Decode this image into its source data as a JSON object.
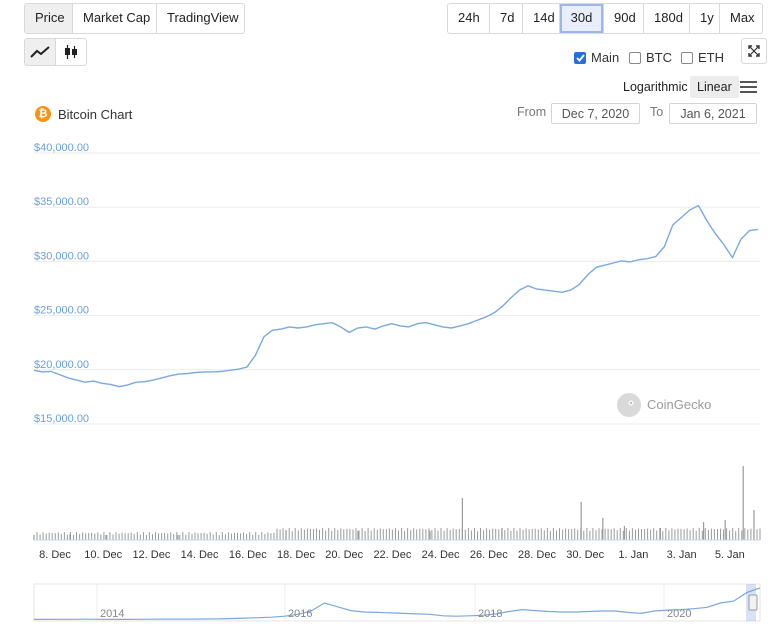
{
  "tabs": [
    {
      "label": "Price",
      "active": true
    },
    {
      "label": "Market Cap",
      "active": false
    },
    {
      "label": "TradingView",
      "active": false
    }
  ],
  "ranges": [
    {
      "label": "24h",
      "selected": false
    },
    {
      "label": "7d",
      "selected": false
    },
    {
      "label": "14d",
      "selected": false
    },
    {
      "label": "30d",
      "selected": true
    },
    {
      "label": "90d",
      "selected": false
    },
    {
      "label": "180d",
      "selected": false
    },
    {
      "label": "1y",
      "selected": false
    },
    {
      "label": "Max",
      "selected": false
    }
  ],
  "chart_type_buttons": [
    {
      "icon": "line-chart-icon",
      "active": true
    },
    {
      "icon": "candlestick-icon",
      "active": false
    }
  ],
  "compare": [
    {
      "label": "Main",
      "checked": true
    },
    {
      "label": "BTC",
      "checked": false
    },
    {
      "label": "ETH",
      "checked": false
    }
  ],
  "scale": {
    "logarithmic": "Logarithmic",
    "linear": "Linear",
    "selected": "Linear"
  },
  "icons": {
    "expand": "expand-icon",
    "menu": "hamburger-menu-icon",
    "coin": "bitcoin-icon",
    "watermark_logo": "coingecko-logo-icon"
  },
  "chart_title": "Bitcoin Chart",
  "date_range": {
    "from_label": "From",
    "from": "Dec 7, 2020",
    "to_label": "To",
    "to": "Jan 6, 2021"
  },
  "watermark": "CoinGecko",
  "colors": {
    "line": "#7aa9e0",
    "tick_label": "#6aa0dc",
    "bitcoin": "#f7931a",
    "volume": "#9a9a9a",
    "selected_range": "#9db5ea"
  },
  "chart_data": {
    "type": "line",
    "title": "Bitcoin Chart",
    "series": [
      {
        "values": [
          19400,
          19250,
          19300,
          19000,
          18700,
          18500,
          18300,
          18400,
          18200,
          18100,
          17900,
          18050,
          18300,
          18350,
          18500,
          18700,
          18900,
          19050,
          19100,
          19200,
          19250,
          19250,
          19300,
          19400,
          19500,
          19700,
          20800,
          22500,
          23100,
          23200,
          23400,
          23300,
          23400,
          23600,
          23700,
          23800,
          23400,
          22900,
          23300,
          23400,
          23200,
          23500,
          23700,
          23500,
          23400,
          23700,
          23800,
          23600,
          23400,
          23300,
          23500,
          23700,
          24000,
          24300,
          24700,
          25300,
          26100,
          26800,
          27200,
          26900,
          26800,
          26700,
          26600,
          26800,
          27300,
          28200,
          28900,
          29100,
          29300,
          29500,
          29400,
          29600,
          29700,
          29900,
          30800,
          32800,
          33500,
          34200,
          34600,
          33200,
          32000,
          31000,
          29800,
          31500,
          32300,
          32400
        ]
      }
    ],
    "x_start": "2020-12-07",
    "x_end": "2021-01-06",
    "ylim": [
      15000,
      40000
    ],
    "yticks": [
      "$15,000.00",
      "$20,000.00",
      "$25,000.00",
      "$30,000.00",
      "$35,000.00",
      "$40,000.00"
    ],
    "ytick_values": [
      15000,
      20000,
      25000,
      30000,
      35000,
      40000
    ],
    "xticks": [
      "8. Dec",
      "10. Dec",
      "12. Dec",
      "14. Dec",
      "16. Dec",
      "18. Dec",
      "20. Dec",
      "22. Dec",
      "24. Dec",
      "26. Dec",
      "28. Dec",
      "30. Dec",
      "1. Jan",
      "3. Jan",
      "5. Jan"
    ],
    "grid": true,
    "legend": "none",
    "volume": {
      "base": 8,
      "spikes": [
        {
          "pos": 0.0,
          "h": 5
        },
        {
          "pos": 0.05,
          "h": 6
        },
        {
          "pos": 0.1,
          "h": 5
        },
        {
          "pos": 0.2,
          "h": 5
        },
        {
          "pos": 0.35,
          "h": 10
        },
        {
          "pos": 0.45,
          "h": 9
        },
        {
          "pos": 0.55,
          "h": 9
        },
        {
          "pos": 0.595,
          "h": 42
        },
        {
          "pos": 0.65,
          "h": 12
        },
        {
          "pos": 0.76,
          "h": 38
        },
        {
          "pos": 0.79,
          "h": 22
        },
        {
          "pos": 0.82,
          "h": 14
        },
        {
          "pos": 0.87,
          "h": 12
        },
        {
          "pos": 0.93,
          "h": 18
        },
        {
          "pos": 0.96,
          "h": 20
        },
        {
          "pos": 0.985,
          "h": 74
        },
        {
          "pos": 1.0,
          "h": 30
        }
      ]
    },
    "navigator": {
      "labels": [
        "2014",
        "2016",
        "2018",
        "2020"
      ],
      "values": [
        0.6,
        0.6,
        0.7,
        0.7,
        0.8,
        0.7,
        0.6,
        0.6,
        0.7,
        0.8,
        0.9,
        0.9,
        1.0,
        1.1,
        1.2,
        1.6,
        2.0,
        2.4,
        3.0,
        4.0,
        6.0,
        9.5,
        18,
        14,
        10,
        8.5,
        8,
        7.5,
        7,
        6.5,
        6,
        4.5,
        4,
        4.5,
        5,
        6.5,
        9,
        11,
        10,
        9,
        8.5,
        8.5,
        9,
        9.5,
        9.5,
        8,
        7,
        9.5,
        10.5,
        11,
        12,
        13.5,
        18,
        20,
        29,
        34
      ]
    }
  }
}
